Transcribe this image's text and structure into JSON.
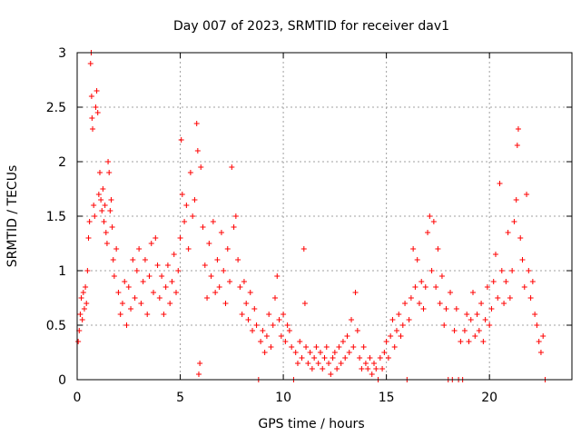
{
  "chart_data": {
    "type": "scatter",
    "title": "Day 007 of 2023, SRMTID for receiver dav1",
    "xlabel": "GPS time / hours",
    "ylabel": "SRMTID / TECUs",
    "xlim": [
      0,
      24
    ],
    "ylim": [
      0,
      3
    ],
    "xticks": [
      0,
      5,
      10,
      15,
      20
    ],
    "yticks": [
      0,
      0.5,
      1,
      1.5,
      2,
      2.5,
      3
    ],
    "xtick_labels": [
      "0",
      "5",
      "10",
      "15",
      "20"
    ],
    "ytick_labels": [
      "0",
      "0.5",
      "1",
      "1.5",
      "2",
      "2.5",
      "3"
    ],
    "grid": true,
    "marker": "plus",
    "series": [
      {
        "name": "SRMTID dav1",
        "color": "#ff0000",
        "points": [
          [
            0.05,
            0.35
          ],
          [
            0.1,
            0.45
          ],
          [
            0.15,
            0.6
          ],
          [
            0.2,
            0.75
          ],
          [
            0.25,
            0.55
          ],
          [
            0.3,
            0.8
          ],
          [
            0.35,
            0.65
          ],
          [
            0.4,
            0.85
          ],
          [
            0.45,
            0.7
          ],
          [
            0.5,
            1.0
          ],
          [
            0.55,
            1.3
          ],
          [
            0.6,
            1.45
          ],
          [
            0.65,
            2.9
          ],
          [
            0.68,
            3.0
          ],
          [
            0.7,
            2.6
          ],
          [
            0.72,
            2.4
          ],
          [
            0.75,
            2.3
          ],
          [
            0.8,
            1.6
          ],
          [
            0.85,
            1.5
          ],
          [
            0.9,
            2.5
          ],
          [
            0.95,
            2.65
          ],
          [
            1.0,
            2.45
          ],
          [
            1.05,
            1.7
          ],
          [
            1.1,
            1.9
          ],
          [
            1.15,
            1.65
          ],
          [
            1.2,
            1.55
          ],
          [
            1.25,
            1.75
          ],
          [
            1.3,
            1.45
          ],
          [
            1.35,
            1.6
          ],
          [
            1.4,
            1.35
          ],
          [
            1.45,
            1.25
          ],
          [
            1.5,
            2.0
          ],
          [
            1.55,
            1.9
          ],
          [
            1.6,
            1.55
          ],
          [
            1.65,
            1.65
          ],
          [
            1.7,
            1.4
          ],
          [
            1.75,
            1.1
          ],
          [
            1.8,
            0.95
          ],
          [
            1.9,
            1.2
          ],
          [
            2.0,
            0.8
          ],
          [
            2.1,
            0.6
          ],
          [
            2.2,
            0.7
          ],
          [
            2.3,
            0.9
          ],
          [
            2.4,
            0.5
          ],
          [
            2.5,
            0.85
          ],
          [
            2.6,
            0.65
          ],
          [
            2.7,
            1.1
          ],
          [
            2.8,
            0.75
          ],
          [
            2.9,
            1.0
          ],
          [
            3.0,
            1.2
          ],
          [
            3.1,
            0.7
          ],
          [
            3.2,
            0.9
          ],
          [
            3.3,
            1.1
          ],
          [
            3.4,
            0.6
          ],
          [
            3.5,
            0.95
          ],
          [
            3.6,
            1.25
          ],
          [
            3.7,
            0.8
          ],
          [
            3.8,
            1.3
          ],
          [
            3.9,
            1.05
          ],
          [
            4.0,
            0.75
          ],
          [
            4.1,
            0.95
          ],
          [
            4.2,
            0.6
          ],
          [
            4.3,
            0.85
          ],
          [
            4.4,
            1.05
          ],
          [
            4.5,
            0.7
          ],
          [
            4.6,
            0.9
          ],
          [
            4.7,
            1.15
          ],
          [
            4.8,
            0.8
          ],
          [
            4.9,
            1.0
          ],
          [
            5.0,
            1.3
          ],
          [
            5.05,
            2.2
          ],
          [
            5.1,
            1.7
          ],
          [
            5.2,
            1.45
          ],
          [
            5.3,
            1.6
          ],
          [
            5.4,
            1.2
          ],
          [
            5.5,
            1.9
          ],
          [
            5.6,
            1.5
          ],
          [
            5.7,
            1.65
          ],
          [
            5.8,
            2.35
          ],
          [
            5.85,
            2.1
          ],
          [
            5.9,
            0.05
          ],
          [
            5.95,
            0.15
          ],
          [
            6.0,
            1.95
          ],
          [
            6.1,
            1.4
          ],
          [
            6.2,
            1.05
          ],
          [
            6.3,
            0.75
          ],
          [
            6.4,
            1.25
          ],
          [
            6.5,
            0.95
          ],
          [
            6.6,
            1.45
          ],
          [
            6.7,
            0.8
          ],
          [
            6.8,
            1.1
          ],
          [
            6.9,
            0.85
          ],
          [
            7.0,
            1.35
          ],
          [
            7.1,
            1.0
          ],
          [
            7.2,
            0.7
          ],
          [
            7.3,
            1.2
          ],
          [
            7.4,
            0.9
          ],
          [
            7.5,
            1.95
          ],
          [
            7.6,
            1.4
          ],
          [
            7.7,
            1.5
          ],
          [
            7.8,
            1.1
          ],
          [
            7.9,
            0.85
          ],
          [
            8.0,
            0.6
          ],
          [
            8.1,
            0.9
          ],
          [
            8.2,
            0.7
          ],
          [
            8.3,
            0.55
          ],
          [
            8.4,
            0.8
          ],
          [
            8.5,
            0.45
          ],
          [
            8.6,
            0.65
          ],
          [
            8.7,
            0.5
          ],
          [
            8.8,
            0.0
          ],
          [
            8.9,
            0.35
          ],
          [
            9.0,
            0.45
          ],
          [
            9.1,
            0.25
          ],
          [
            9.2,
            0.4
          ],
          [
            9.3,
            0.6
          ],
          [
            9.4,
            0.3
          ],
          [
            9.5,
            0.5
          ],
          [
            9.6,
            0.75
          ],
          [
            9.7,
            0.95
          ],
          [
            9.8,
            0.55
          ],
          [
            9.9,
            0.4
          ],
          [
            10.0,
            0.6
          ],
          [
            10.1,
            0.35
          ],
          [
            10.2,
            0.5
          ],
          [
            10.3,
            0.45
          ],
          [
            10.4,
            0.3
          ],
          [
            10.5,
            0.0
          ],
          [
            10.6,
            0.25
          ],
          [
            10.7,
            0.15
          ],
          [
            10.8,
            0.35
          ],
          [
            10.9,
            0.2
          ],
          [
            11.0,
            1.2
          ],
          [
            11.05,
            0.7
          ],
          [
            11.1,
            0.3
          ],
          [
            11.2,
            0.15
          ],
          [
            11.3,
            0.25
          ],
          [
            11.4,
            0.1
          ],
          [
            11.5,
            0.2
          ],
          [
            11.6,
            0.3
          ],
          [
            11.7,
            0.15
          ],
          [
            11.8,
            0.25
          ],
          [
            11.9,
            0.1
          ],
          [
            12.0,
            0.2
          ],
          [
            12.1,
            0.3
          ],
          [
            12.2,
            0.15
          ],
          [
            12.3,
            0.05
          ],
          [
            12.4,
            0.2
          ],
          [
            12.5,
            0.25
          ],
          [
            12.6,
            0.1
          ],
          [
            12.7,
            0.3
          ],
          [
            12.8,
            0.15
          ],
          [
            12.9,
            0.35
          ],
          [
            13.0,
            0.2
          ],
          [
            13.1,
            0.4
          ],
          [
            13.2,
            0.25
          ],
          [
            13.3,
            0.55
          ],
          [
            13.4,
            0.3
          ],
          [
            13.5,
            0.8
          ],
          [
            13.6,
            0.45
          ],
          [
            13.7,
            0.2
          ],
          [
            13.8,
            0.1
          ],
          [
            13.9,
            0.3
          ],
          [
            14.0,
            0.15
          ],
          [
            14.1,
            0.1
          ],
          [
            14.2,
            0.2
          ],
          [
            14.3,
            0.05
          ],
          [
            14.4,
            0.15
          ],
          [
            14.5,
            0.1
          ],
          [
            14.6,
            0.0
          ],
          [
            14.7,
            0.2
          ],
          [
            14.8,
            0.1
          ],
          [
            14.9,
            0.25
          ],
          [
            15.0,
            0.35
          ],
          [
            15.1,
            0.2
          ],
          [
            15.2,
            0.4
          ],
          [
            15.3,
            0.55
          ],
          [
            15.4,
            0.3
          ],
          [
            15.5,
            0.45
          ],
          [
            15.6,
            0.6
          ],
          [
            15.7,
            0.4
          ],
          [
            15.8,
            0.5
          ],
          [
            15.9,
            0.7
          ],
          [
            16.0,
            0.0
          ],
          [
            16.1,
            0.55
          ],
          [
            16.2,
            0.75
          ],
          [
            16.3,
            1.2
          ],
          [
            16.4,
            0.85
          ],
          [
            16.5,
            1.1
          ],
          [
            16.6,
            0.7
          ],
          [
            16.7,
            0.9
          ],
          [
            16.8,
            0.65
          ],
          [
            16.9,
            0.85
          ],
          [
            17.0,
            1.35
          ],
          [
            17.1,
            1.5
          ],
          [
            17.2,
            1.0
          ],
          [
            17.3,
            1.45
          ],
          [
            17.4,
            0.85
          ],
          [
            17.5,
            1.2
          ],
          [
            17.6,
            0.7
          ],
          [
            17.7,
            0.95
          ],
          [
            17.8,
            0.5
          ],
          [
            17.9,
            0.65
          ],
          [
            18.0,
            0.0
          ],
          [
            18.1,
            0.8
          ],
          [
            18.2,
            0.0
          ],
          [
            18.3,
            0.45
          ],
          [
            18.4,
            0.65
          ],
          [
            18.5,
            0.0
          ],
          [
            18.6,
            0.35
          ],
          [
            18.7,
            0.0
          ],
          [
            18.8,
            0.45
          ],
          [
            18.9,
            0.6
          ],
          [
            19.0,
            0.35
          ],
          [
            19.1,
            0.55
          ],
          [
            19.2,
            0.8
          ],
          [
            19.3,
            0.4
          ],
          [
            19.4,
            0.6
          ],
          [
            19.5,
            0.45
          ],
          [
            19.6,
            0.7
          ],
          [
            19.7,
            0.35
          ],
          [
            19.8,
            0.55
          ],
          [
            19.9,
            0.85
          ],
          [
            20.0,
            0.5
          ],
          [
            20.1,
            0.65
          ],
          [
            20.2,
            0.9
          ],
          [
            20.3,
            1.15
          ],
          [
            20.4,
            0.75
          ],
          [
            20.5,
            1.8
          ],
          [
            20.6,
            1.0
          ],
          [
            20.7,
            0.7
          ],
          [
            20.8,
            0.9
          ],
          [
            20.9,
            1.35
          ],
          [
            21.0,
            0.75
          ],
          [
            21.1,
            1.0
          ],
          [
            21.2,
            1.45
          ],
          [
            21.3,
            1.65
          ],
          [
            21.35,
            2.15
          ],
          [
            21.4,
            2.3
          ],
          [
            21.5,
            1.3
          ],
          [
            21.6,
            1.1
          ],
          [
            21.7,
            0.85
          ],
          [
            21.8,
            1.7
          ],
          [
            21.9,
            1.0
          ],
          [
            22.0,
            0.75
          ],
          [
            22.1,
            0.9
          ],
          [
            22.2,
            0.6
          ],
          [
            22.3,
            0.5
          ],
          [
            22.4,
            0.35
          ],
          [
            22.5,
            0.25
          ],
          [
            22.6,
            0.4
          ],
          [
            22.7,
            0.0
          ]
        ]
      }
    ]
  }
}
